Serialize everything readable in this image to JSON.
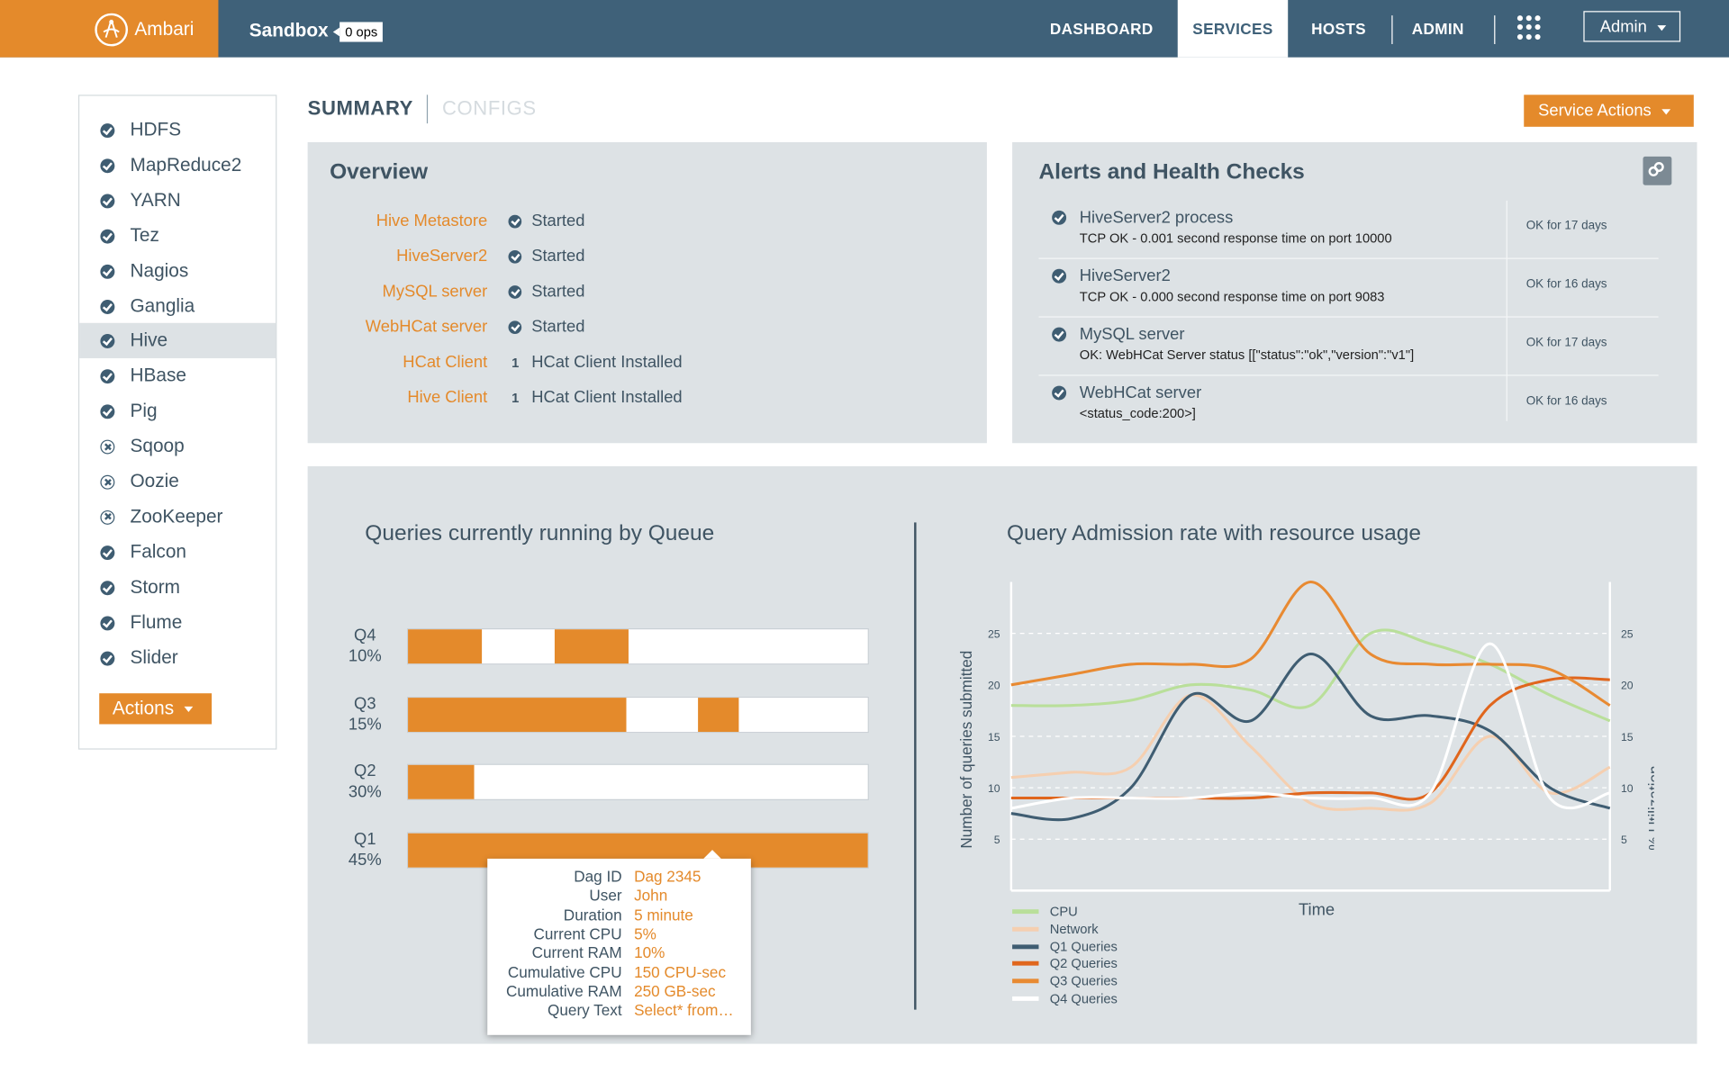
{
  "header": {
    "brand": "Ambari",
    "cluster": "Sandbox",
    "ops_badge": "0 ops",
    "nav": [
      "DASHBOARD",
      "SERVICES",
      "HOSTS",
      "ADMIN"
    ],
    "active_nav": "SERVICES",
    "user_menu": "Admin"
  },
  "sidebar": {
    "services": [
      {
        "name": "HDFS",
        "status": "ok"
      },
      {
        "name": "MapReduce2",
        "status": "ok"
      },
      {
        "name": "YARN",
        "status": "ok"
      },
      {
        "name": "Tez",
        "status": "ok"
      },
      {
        "name": "Nagios",
        "status": "ok"
      },
      {
        "name": "Ganglia",
        "status": "ok"
      },
      {
        "name": "Hive",
        "status": "ok"
      },
      {
        "name": "HBase",
        "status": "ok"
      },
      {
        "name": "Pig",
        "status": "ok"
      },
      {
        "name": "Sqoop",
        "status": "stopped"
      },
      {
        "name": "Oozie",
        "status": "stopped"
      },
      {
        "name": "ZooKeeper",
        "status": "stopped"
      },
      {
        "name": "Falcon",
        "status": "ok"
      },
      {
        "name": "Storm",
        "status": "ok"
      },
      {
        "name": "Flume",
        "status": "ok"
      },
      {
        "name": "Slider",
        "status": "ok"
      }
    ],
    "active_service": "Hive",
    "actions_label": "Actions"
  },
  "tabs": {
    "summary": "SUMMARY",
    "configs": "CONFIGS"
  },
  "service_actions_label": "Service Actions",
  "overview": {
    "title": "Overview",
    "components": [
      {
        "name": "Hive Metastore",
        "icon": "check-circle-icon",
        "count": "",
        "status": "Started"
      },
      {
        "name": "HiveServer2",
        "icon": "check-circle-icon",
        "count": "",
        "status": "Started"
      },
      {
        "name": "MySQL server",
        "icon": "check-circle-icon",
        "count": "",
        "status": "Started"
      },
      {
        "name": "WebHCat server",
        "icon": "check-circle-icon",
        "count": "",
        "status": "Started"
      },
      {
        "name": "HCat Client",
        "icon": "",
        "count": "1",
        "status": "HCat Client Installed"
      },
      {
        "name": "Hive Client",
        "icon": "",
        "count": "1",
        "status": "HCat Client Installed"
      }
    ]
  },
  "alerts": {
    "title": "Alerts and Health Checks",
    "items": [
      {
        "name": "HiveServer2 process",
        "detail": "TCP OK - 0.001 second response time on port 10000",
        "time": "OK for 17 days"
      },
      {
        "name": "HiveServer2",
        "detail": "TCP OK - 0.000 second response time on port 9083",
        "time": "OK for 16 days"
      },
      {
        "name": "MySQL server",
        "detail": "OK: WebHCat Server status [[\"status\":\"ok\",\"version\":\"v1\"]",
        "time": "OK for  17 days"
      },
      {
        "name": "WebHCat server",
        "detail": "<status_code:200>]",
        "time": "OK for 16 days"
      }
    ]
  },
  "queues_chart": {
    "title": "Queries currently running by Queue",
    "queues": [
      {
        "name": "Q4",
        "pct": "10%"
      },
      {
        "name": "Q3",
        "pct": "15%"
      },
      {
        "name": "Q2",
        "pct": "30%"
      },
      {
        "name": "Q1",
        "pct": "45%"
      }
    ]
  },
  "tooltip": {
    "rows": [
      {
        "key": "Dag ID",
        "value": "Dag 2345"
      },
      {
        "key": "User",
        "value": "John"
      },
      {
        "key": "Duration",
        "value": "5 minute"
      },
      {
        "key": "Current CPU",
        "value": "5%"
      },
      {
        "key": "Current RAM",
        "value": "10%"
      },
      {
        "key": "Cumulative CPU",
        "value": "150 CPU-sec"
      },
      {
        "key": "Cumulative RAM",
        "value": "250 GB-sec"
      },
      {
        "key": "Query Text",
        "value": "Select* from…"
      }
    ]
  },
  "admission_chart": {
    "title": "Query Admission rate with resource usage",
    "ylabel": "Number of queries submitted",
    "y2label": "% Utilization",
    "xlabel": "Time",
    "ticks": [
      "25",
      "20",
      "15",
      "10",
      "5"
    ],
    "legend": [
      {
        "name": "CPU",
        "color": "#b9df9a"
      },
      {
        "name": "Network",
        "color": "#f5cfb0"
      },
      {
        "name": "Q1 Queries",
        "color": "#3f5d72"
      },
      {
        "name": "Q2 Queries",
        "color": "#e0661d"
      },
      {
        "name": "Q3 Queries",
        "color": "#e88a32"
      },
      {
        "name": "Q4 Queries",
        "color": "#ffffff"
      }
    ]
  },
  "chart_data": [
    {
      "type": "bar",
      "title": "Queries currently running by Queue",
      "categories": [
        "Q4",
        "Q3",
        "Q2",
        "Q1"
      ],
      "category_labels": [
        "10%",
        "15%",
        "30%",
        "45%"
      ],
      "segments": [
        [
          {
            "from": 0,
            "to": 0.16,
            "color": "orange"
          },
          {
            "from": 0.16,
            "to": 0.32,
            "color": "white"
          },
          {
            "from": 0.32,
            "to": 0.48,
            "color": "orange"
          }
        ],
        [
          {
            "from": 0,
            "to": 0.475,
            "color": "orange"
          },
          {
            "from": 0.475,
            "to": 0.63,
            "color": "white"
          },
          {
            "from": 0.63,
            "to": 0.72,
            "color": "orange"
          }
        ],
        [
          {
            "from": 0,
            "to": 0.145,
            "color": "orange"
          },
          {
            "from": 0.145,
            "to": 0.94,
            "color": "white"
          }
        ],
        [
          {
            "from": 0,
            "to": 1,
            "color": "orange"
          }
        ]
      ]
    },
    {
      "type": "line",
      "title": "Query Admission rate with resource usage",
      "xlabel": "Time",
      "ylabel": "Number of queries submitted",
      "y2label": "% Utilization",
      "ylim": [
        0,
        30
      ],
      "yticks": [
        5,
        10,
        15,
        20,
        25
      ],
      "grid": "dashed horizontal",
      "legend_position": "bottom-left",
      "x": [
        0,
        10,
        20,
        30,
        40,
        50,
        60,
        70,
        80,
        90,
        100
      ],
      "series": [
        {
          "name": "CPU",
          "values": [
            18,
            18,
            18.5,
            20,
            19.5,
            18,
            25,
            24,
            22,
            19,
            16.5
          ]
        },
        {
          "name": "Network",
          "values": [
            11,
            11.5,
            12,
            19,
            14,
            8.5,
            8,
            8.5,
            15,
            9.5,
            12
          ]
        },
        {
          "name": "Q1 Queries",
          "values": [
            7.5,
            7,
            10,
            19,
            16.5,
            23,
            17,
            17,
            15.5,
            10,
            8
          ]
        },
        {
          "name": "Q2 Queries",
          "values": [
            9,
            9,
            9,
            9,
            9,
            9.5,
            9.5,
            9.5,
            18,
            20.5,
            20.5
          ]
        },
        {
          "name": "Q3 Queries",
          "values": [
            20,
            21,
            22,
            22,
            22.5,
            30,
            23,
            22,
            22,
            21.5,
            18
          ]
        },
        {
          "name": "Q4 Queries",
          "values": [
            8,
            9,
            9,
            9,
            9.5,
            9,
            9,
            9.5,
            24,
            9,
            9.5
          ]
        }
      ]
    }
  ]
}
